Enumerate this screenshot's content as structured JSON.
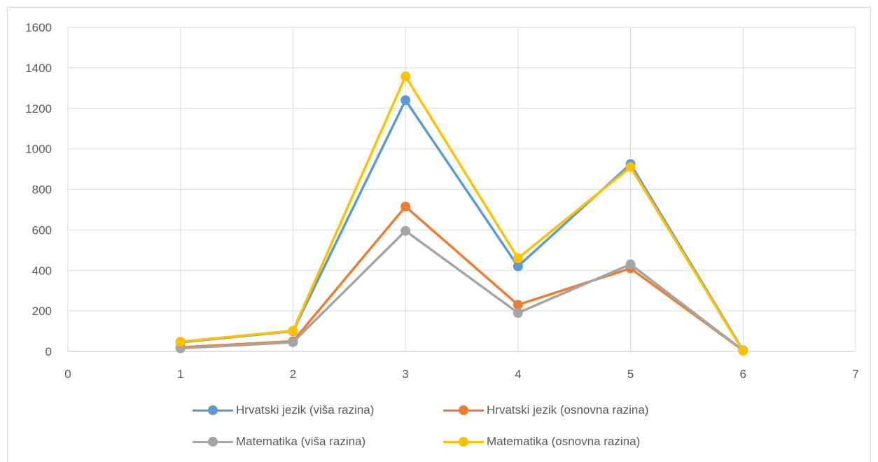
{
  "chart_data": {
    "type": "line",
    "x": [
      1,
      2,
      3,
      4,
      5,
      6
    ],
    "xlim": [
      0,
      7
    ],
    "ylim": [
      0,
      1600
    ],
    "x_ticks": [
      "0",
      "1",
      "2",
      "3",
      "4",
      "5",
      "6",
      "7"
    ],
    "y_ticks": [
      "0",
      "200",
      "400",
      "600",
      "800",
      "1000",
      "1200",
      "1400",
      "1600"
    ],
    "grid": true,
    "legend_position": "bottom",
    "title": "",
    "xlabel": "",
    "ylabel": "",
    "series": [
      {
        "name": "Hrvatski jezik (viša razina)",
        "color": "#5b9bd5",
        "values": [
          45,
          100,
          1240,
          420,
          925,
          5
        ]
      },
      {
        "name": "Hrvatski jezik (osnovna razina)",
        "color": "#ed7d31",
        "values": [
          20,
          50,
          715,
          230,
          410,
          5
        ]
      },
      {
        "name": "Matematika (viša razina)",
        "color": "#a5a5a5",
        "values": [
          15,
          45,
          595,
          190,
          430,
          5
        ]
      },
      {
        "name": "Matematika (osnovna razina)",
        "color": "#ffc000",
        "values": [
          48,
          102,
          1358,
          460,
          910,
          3
        ]
      }
    ]
  }
}
